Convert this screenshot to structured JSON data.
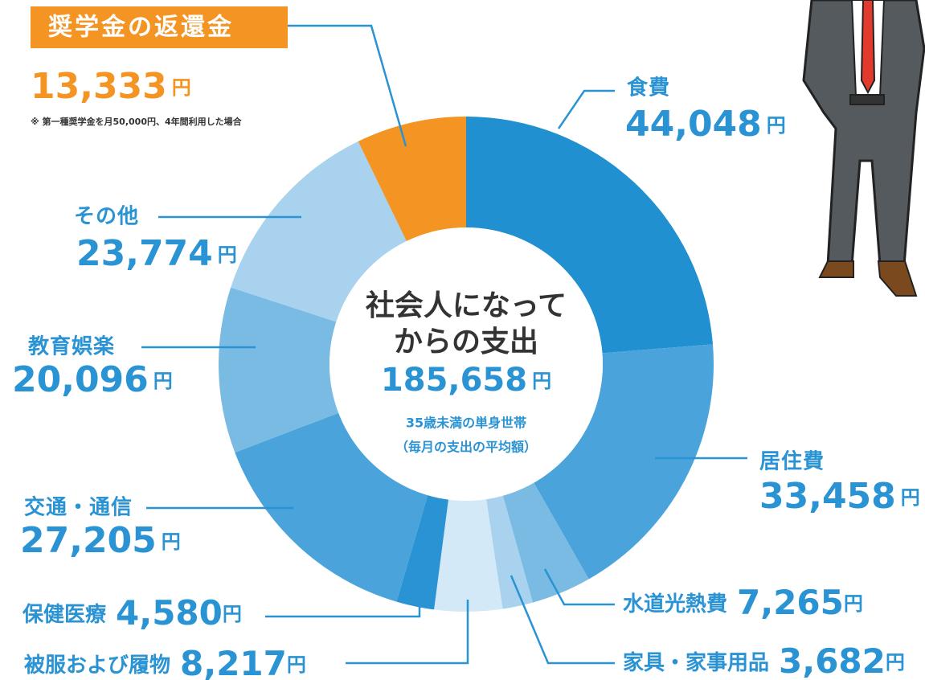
{
  "chart_data": {
    "type": "pie",
    "categories": [
      "食費",
      "居住費",
      "水道光熱費",
      "家具・家事用品",
      "被服および履物",
      "保健医療",
      "交通・通信",
      "教育娯楽",
      "その他",
      "奨学金の返還金"
    ],
    "values": [
      44048,
      33458,
      7265,
      3682,
      8217,
      4580,
      27205,
      20096,
      23774,
      13333
    ],
    "value_labels": [
      "44,048",
      "33,458",
      "7,265",
      "3,682",
      "8,217",
      "4,580",
      "27,205",
      "20,096",
      "23,774",
      "13,333"
    ],
    "unit": "円",
    "colors": [
      "#2190d1",
      "#4aa4db",
      "#7abbe4",
      "#a8d2ed",
      "#d4e9f7",
      "#2a93d3",
      "#4aa4db",
      "#7abbe4",
      "#a8d2ed",
      "#f39423"
    ],
    "center_title": [
      "社会人になって",
      "からの支出"
    ],
    "total": "185,658",
    "center_subtitle": [
      "35歳未満の単身世帯",
      "（毎月の支出の平均額）"
    ],
    "note": "※ 第一種奨学金を月50,000円、4年間利用した場合"
  }
}
